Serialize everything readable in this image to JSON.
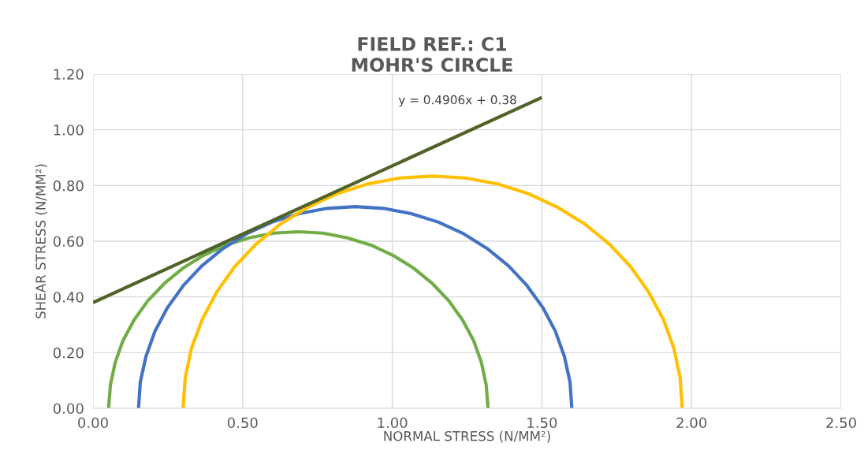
{
  "chart_data": {
    "type": "line",
    "title": "FIELD REF.: C1\nMOHR'S CIRCLE",
    "xlabel": "NORMAL STRESS (N/MM²)",
    "ylabel": "SHEAR STRESS (N/MM²)",
    "xlim": [
      0,
      2.5
    ],
    "ylim": [
      0,
      1.2
    ],
    "xticks": [
      {
        "value": 0,
        "label": "0.00"
      },
      {
        "value": 0.5,
        "label": "0.50"
      },
      {
        "value": 1,
        "label": "1.00"
      },
      {
        "value": 1.5,
        "label": "1.50"
      },
      {
        "value": 2,
        "label": "2.00"
      },
      {
        "value": 2.5,
        "label": "2.50"
      }
    ],
    "yticks": [
      {
        "value": 0,
        "label": "0.00"
      },
      {
        "value": 0.2,
        "label": "0.20"
      },
      {
        "value": 0.4,
        "label": "0.40"
      },
      {
        "value": 0.6,
        "label": "0.60"
      },
      {
        "value": 0.8,
        "label": "0.80"
      },
      {
        "value": 1,
        "label": "1.00"
      },
      {
        "value": 1.2,
        "label": "1.20"
      }
    ],
    "grid": true,
    "legend": false,
    "marker": "none",
    "line_style": "solid",
    "series": [
      {
        "color": "#70ad47",
        "x": [
          0.052,
          0.058,
          0.074,
          0.1,
          0.137,
          0.183,
          0.238,
          0.3,
          0.369,
          0.443,
          0.522,
          0.603,
          0.686,
          0.769,
          0.85,
          0.929,
          1.003,
          1.072,
          1.134,
          1.189,
          1.235,
          1.272,
          1.298,
          1.314,
          1.32
        ],
        "values": [
          0,
          0.083,
          0.164,
          0.243,
          0.317,
          0.386,
          0.448,
          0.503,
          0.549,
          0.586,
          0.612,
          0.629,
          0.634,
          0.629,
          0.612,
          0.586,
          0.549,
          0.503,
          0.448,
          0.386,
          0.317,
          0.243,
          0.164,
          0.083,
          0
        ]
      },
      {
        "color": "#4472c4",
        "x": [
          0.152,
          0.158,
          0.177,
          0.207,
          0.249,
          0.302,
          0.364,
          0.435,
          0.514,
          0.599,
          0.689,
          0.782,
          0.876,
          0.971,
          1.063,
          1.153,
          1.238,
          1.317,
          1.388,
          1.45,
          1.503,
          1.545,
          1.575,
          1.594,
          1.6
        ],
        "values": [
          0,
          0.095,
          0.187,
          0.277,
          0.362,
          0.441,
          0.512,
          0.574,
          0.627,
          0.669,
          0.699,
          0.718,
          0.724,
          0.718,
          0.699,
          0.669,
          0.627,
          0.574,
          0.512,
          0.441,
          0.362,
          0.277,
          0.187,
          0.095,
          0
        ]
      },
      {
        "color": "#ffc000",
        "x": [
          0.301,
          0.308,
          0.329,
          0.365,
          0.413,
          0.473,
          0.545,
          0.627,
          0.718,
          0.816,
          0.919,
          1.026,
          1.135,
          1.244,
          1.351,
          1.454,
          1.552,
          1.643,
          1.725,
          1.797,
          1.857,
          1.906,
          1.941,
          1.962,
          1.969
        ],
        "values": [
          0,
          0.109,
          0.216,
          0.319,
          0.417,
          0.508,
          0.59,
          0.662,
          0.722,
          0.771,
          0.806,
          0.827,
          0.834,
          0.827,
          0.806,
          0.771,
          0.722,
          0.662,
          0.59,
          0.508,
          0.417,
          0.319,
          0.216,
          0.109,
          0
        ]
      },
      {
        "color": "#4f6228",
        "x": [
          0,
          1.5
        ],
        "values": [
          0.38,
          1.116
        ]
      }
    ],
    "annotations": [
      "y = 0.4906x + 0.38"
    ]
  }
}
